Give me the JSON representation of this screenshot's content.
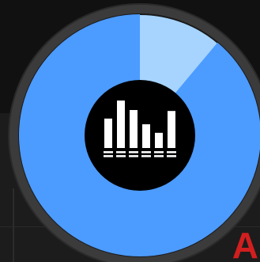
{
  "dial": {
    "progress_fraction": 0.889,
    "colors": {
      "bezel": "#3b3b3b",
      "ring_edge": "#2a2a2a",
      "filled": "#4c9bff",
      "remaining": "#a6d4ff",
      "hub": "#000000",
      "hub_glyph": "#ffffff"
    }
  },
  "hub_icon": {
    "name": "equalizer-icon",
    "bar_levels": [
      0.62,
      1.0,
      0.8,
      0.5,
      0.32,
      0.78
    ]
  },
  "corner": {
    "letter": "A",
    "color": "#d11f1f"
  }
}
